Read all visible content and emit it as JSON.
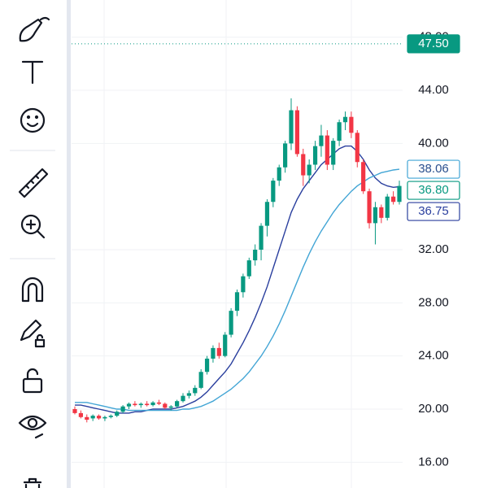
{
  "chart_data": {
    "type": "candlestick",
    "open": [
      20.0,
      19.7,
      19.4,
      19.3,
      19.5,
      19.3,
      19.4,
      19.5,
      19.8,
      20.2,
      20.4,
      20.3,
      20.4,
      20.3,
      20.5,
      20.4,
      20.1,
      20.2,
      20.6,
      21.0,
      21.2,
      21.6,
      22.8,
      23.8,
      24.6,
      24.0,
      25.6,
      27.4,
      28.8,
      30.0,
      31.2,
      32.0,
      33.8,
      35.6,
      37.2,
      38.2,
      40.0,
      42.5,
      39.2,
      37.6,
      38.4,
      39.8,
      40.6,
      38.4,
      40.2,
      41.6,
      42.0,
      40.8,
      38.6,
      36.4,
      34.0,
      35.2,
      34.4,
      36.0,
      35.6
    ],
    "high": [
      20.2,
      19.9,
      19.6,
      19.6,
      19.6,
      19.5,
      19.6,
      19.9,
      20.3,
      20.5,
      20.6,
      20.5,
      20.6,
      20.6,
      20.7,
      20.5,
      20.3,
      20.7,
      21.2,
      21.4,
      21.8,
      23.0,
      24.0,
      24.8,
      25.0,
      25.8,
      27.6,
      29.0,
      30.2,
      31.4,
      32.4,
      34.0,
      35.8,
      37.4,
      38.4,
      40.2,
      43.4,
      42.8,
      39.6,
      38.8,
      40.2,
      41.4,
      41.0,
      40.4,
      41.8,
      42.4,
      42.4,
      41.0,
      38.8,
      36.6,
      35.6,
      35.4,
      36.2,
      36.4,
      37.2
    ],
    "low": [
      19.6,
      19.3,
      19.0,
      19.1,
      19.2,
      19.1,
      19.3,
      19.4,
      19.7,
      20.0,
      20.2,
      20.1,
      20.2,
      20.2,
      20.3,
      20.0,
      19.9,
      20.1,
      20.5,
      20.8,
      21.0,
      21.5,
      22.6,
      23.5,
      23.8,
      23.9,
      25.4,
      27.0,
      28.4,
      29.8,
      30.8,
      31.2,
      33.0,
      35.2,
      36.8,
      37.8,
      39.5,
      39.0,
      36.8,
      37.0,
      38.0,
      39.0,
      38.0,
      38.0,
      39.8,
      41.0,
      40.4,
      38.2,
      36.2,
      33.6,
      32.4,
      34.0,
      34.2,
      35.4,
      35.4
    ],
    "close": [
      19.7,
      19.4,
      19.2,
      19.5,
      19.3,
      19.4,
      19.5,
      19.8,
      20.2,
      20.4,
      20.3,
      20.4,
      20.3,
      20.5,
      20.4,
      20.1,
      20.2,
      20.6,
      21.0,
      21.2,
      21.6,
      22.8,
      23.8,
      24.6,
      24.0,
      25.6,
      27.4,
      28.8,
      30.0,
      31.2,
      32.0,
      33.8,
      35.6,
      37.2,
      38.2,
      40.0,
      42.5,
      39.2,
      37.6,
      38.4,
      39.8,
      40.6,
      38.4,
      40.2,
      41.6,
      42.0,
      40.8,
      38.6,
      36.4,
      34.0,
      35.2,
      34.4,
      36.0,
      35.6,
      36.8
    ],
    "up_color": "#089981",
    "down_color": "#f23645",
    "series": [
      {
        "color": "#2a3f9e",
        "values": [
          20.3,
          20.3,
          20.2,
          20.1,
          20.0,
          19.9,
          19.8,
          19.7,
          19.7,
          19.7,
          19.8,
          19.8,
          19.9,
          20.0,
          20.0,
          20.0,
          20.0,
          20.1,
          20.2,
          20.4,
          20.6,
          20.9,
          21.3,
          21.8,
          22.3,
          22.8,
          23.4,
          24.2,
          25.0,
          25.9,
          26.9,
          28.0,
          29.2,
          30.6,
          32.0,
          33.4,
          34.8,
          35.8,
          36.6,
          37.2,
          37.8,
          38.4,
          38.8,
          39.2,
          39.6,
          39.8,
          39.8,
          39.4,
          38.8,
          38.0,
          37.4,
          37.0,
          36.8,
          36.7,
          36.75
        ]
      },
      {
        "color": "#42a5d5",
        "values": [
          20.5,
          20.5,
          20.5,
          20.4,
          20.3,
          20.2,
          20.1,
          20.0,
          20.0,
          19.9,
          19.9,
          19.9,
          19.9,
          19.9,
          19.9,
          19.9,
          19.9,
          19.9,
          20.0,
          20.0,
          20.1,
          20.2,
          20.4,
          20.6,
          20.9,
          21.2,
          21.5,
          21.9,
          22.3,
          22.8,
          23.4,
          24.0,
          24.7,
          25.5,
          26.4,
          27.4,
          28.5,
          29.6,
          30.7,
          31.7,
          32.6,
          33.4,
          34.1,
          34.8,
          35.4,
          35.9,
          36.4,
          36.8,
          37.1,
          37.4,
          37.6,
          37.8,
          37.9,
          38.0,
          38.06
        ]
      }
    ],
    "ylim": [
      14.06,
      50.8
    ],
    "yticks": [
      {
        "value": 48,
        "label": "48.00"
      },
      {
        "value": 44,
        "label": "44.00"
      },
      {
        "value": 40,
        "label": "40.00"
      },
      {
        "value": 32,
        "label": "32.00"
      },
      {
        "value": 28,
        "label": "28.00"
      },
      {
        "value": 24,
        "label": "24.00"
      },
      {
        "value": 20,
        "label": "20.00"
      },
      {
        "value": 16,
        "label": "16.00"
      }
    ],
    "grid": true,
    "price_labels": [
      {
        "value": 47.5,
        "label": "47.50",
        "color": "#089981",
        "filled": true,
        "dotted_line": true
      },
      {
        "value": 38.06,
        "label": "38.06",
        "color": "#42a5d5",
        "filled": false,
        "text_color": "#2a4f8e"
      },
      {
        "value": 36.8,
        "label": "36.80",
        "color": "#089981",
        "filled": false,
        "text_color": "#089981"
      },
      {
        "value": 36.75,
        "label": "36.75",
        "color": "#2a3f9e",
        "filled": false,
        "text_color": "#2a3f9e"
      }
    ]
  }
}
